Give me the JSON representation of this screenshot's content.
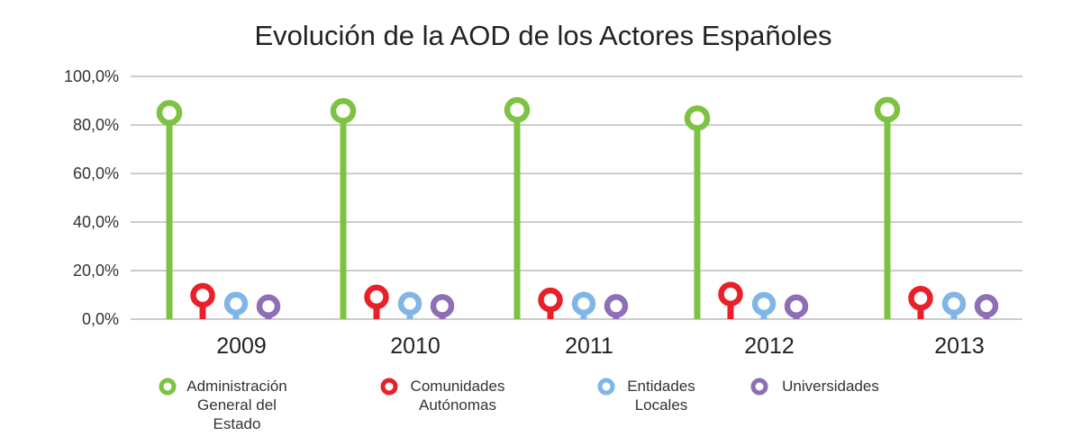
{
  "chart_data": {
    "type": "lollipop",
    "title": "Evolución de la AOD de los Actores Españoles",
    "xlabel": "",
    "ylabel": "",
    "categories": [
      "2009",
      "2010",
      "2011",
      "2012",
      "2013"
    ],
    "y_ticks": [
      "0,0%",
      "20,0%",
      "40,0%",
      "60,0%",
      "80,0%",
      "100,0%"
    ],
    "ylim": [
      0,
      100
    ],
    "grid": true,
    "legend_position": "bottom",
    "series": [
      {
        "name": "Administración General del Estado",
        "legend_lines": [
          "Administración",
          "General del",
          "Estado"
        ],
        "color": "#7dc242",
        "values": [
          85.0,
          85.8,
          86.2,
          82.8,
          86.3
        ]
      },
      {
        "name": "Comunidades Autónomas",
        "legend_lines": [
          "Comunidades",
          "Autónomas"
        ],
        "color": "#e8202a",
        "values": [
          9.8,
          9.1,
          7.9,
          10.3,
          8.6
        ]
      },
      {
        "name": "Entidades Locales",
        "legend_lines": [
          "Entidades",
          "Locales"
        ],
        "color": "#7fb6e6",
        "values": [
          6.4,
          6.4,
          6.4,
          6.3,
          6.4
        ]
      },
      {
        "name": "Universidades",
        "legend_lines": [
          "Universidades"
        ],
        "color": "#8e6fb5",
        "values": [
          5.3,
          5.4,
          5.4,
          5.3,
          5.4
        ]
      }
    ]
  }
}
